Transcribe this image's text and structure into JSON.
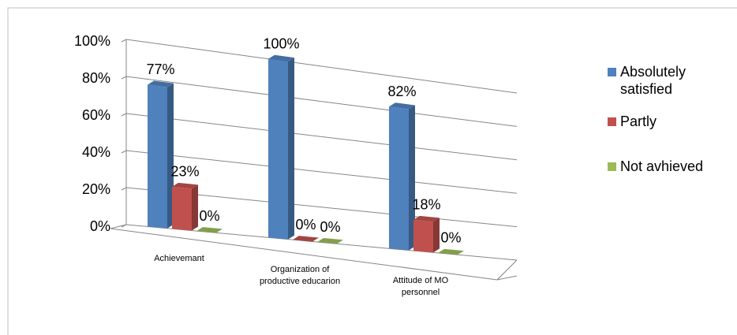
{
  "chart_data": {
    "type": "bar",
    "categories": [
      "Achievemant",
      "Organization of productive educarion",
      "Attitude of MO personnel"
    ],
    "series": [
      {
        "name": "Absolutely satisfied",
        "color": "#4f81bd",
        "values": [
          77,
          100,
          82
        ],
        "value_labels": [
          "77%",
          "100%",
          "82%"
        ]
      },
      {
        "name": "Partly",
        "color": "#c0504d",
        "values": [
          23,
          0,
          18
        ],
        "value_labels": [
          "23%",
          "0%",
          "18%"
        ]
      },
      {
        "name": "Not avhieved",
        "color": "#9bbb59",
        "values": [
          0,
          0,
          0
        ],
        "value_labels": [
          "0%",
          "0%",
          "0%"
        ]
      }
    ],
    "ylim": [
      0,
      100
    ],
    "yticks": [
      {
        "value": 0,
        "label": "0%"
      },
      {
        "value": 20,
        "label": "20%"
      },
      {
        "value": 40,
        "label": "40%"
      },
      {
        "value": 60,
        "label": "60%"
      },
      {
        "value": 80,
        "label": "80%"
      },
      {
        "value": 100,
        "label": "100%"
      }
    ],
    "grid": true,
    "legend": "right"
  }
}
